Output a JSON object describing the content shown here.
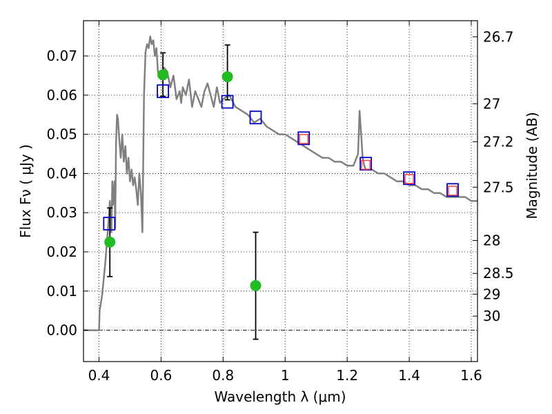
{
  "chart_data": {
    "type": "scatter",
    "xlabel": "Wavelength  λ (μm)",
    "ylabel": "Flux  Fν  ( μJy )",
    "y2label": "Magnitude (AB)",
    "xlim": [
      0.35,
      1.62
    ],
    "ylim": [
      -0.008,
      0.079
    ],
    "xticks": [
      0.4,
      0.6,
      0.8,
      1.0,
      1.2,
      1.4,
      1.6
    ],
    "xtick_labels": [
      "0.4",
      "0.6",
      "0.8",
      "1",
      "1.2",
      "1.4",
      "1.6"
    ],
    "yticks": [
      0.0,
      0.01,
      0.02,
      0.03,
      0.04,
      0.05,
      0.06,
      0.07
    ],
    "ytick_labels": [
      "0.00",
      "0.01",
      "0.02",
      "0.03",
      "0.04",
      "0.05",
      "0.06",
      "0.07"
    ],
    "y2ticks": [
      {
        "label": "26.7",
        "flux": 0.0749
      },
      {
        "label": "27",
        "flux": 0.0578
      },
      {
        "label": "27.2",
        "flux": 0.0481
      },
      {
        "label": "27.5",
        "flux": 0.0365
      },
      {
        "label": "28",
        "flux": 0.0229
      },
      {
        "label": "28.5",
        "flux": 0.0145
      },
      {
        "label": "29",
        "flux": 0.0092
      },
      {
        "label": "30",
        "flux": 0.0036
      }
    ],
    "grid": true,
    "sed_model": {
      "color": "#808080",
      "x": [
        0.35,
        0.4,
        0.402,
        0.41,
        0.42,
        0.43,
        0.435,
        0.44,
        0.443,
        0.445,
        0.45,
        0.452,
        0.455,
        0.458,
        0.461,
        0.465,
        0.47,
        0.475,
        0.48,
        0.485,
        0.49,
        0.495,
        0.5,
        0.505,
        0.51,
        0.515,
        0.52,
        0.525,
        0.53,
        0.535,
        0.54,
        0.545,
        0.55,
        0.555,
        0.56,
        0.565,
        0.57,
        0.575,
        0.58,
        0.585,
        0.59,
        0.6,
        0.61,
        0.62,
        0.63,
        0.64,
        0.65,
        0.66,
        0.665,
        0.67,
        0.68,
        0.69,
        0.7,
        0.71,
        0.72,
        0.73,
        0.74,
        0.75,
        0.76,
        0.77,
        0.78,
        0.79,
        0.8,
        0.82,
        0.84,
        0.86,
        0.88,
        0.9,
        0.92,
        0.94,
        0.96,
        0.98,
        1.0,
        1.02,
        1.04,
        1.06,
        1.08,
        1.1,
        1.12,
        1.14,
        1.16,
        1.18,
        1.2,
        1.22,
        1.235,
        1.24,
        1.245,
        1.25,
        1.255,
        1.26,
        1.28,
        1.3,
        1.32,
        1.34,
        1.36,
        1.38,
        1.4,
        1.42,
        1.44,
        1.46,
        1.48,
        1.5,
        1.52,
        1.54,
        1.56,
        1.58,
        1.6,
        1.62
      ],
      "y": [
        0.0,
        0.0,
        0.005,
        0.009,
        0.017,
        0.027,
        0.033,
        0.025,
        0.038,
        0.032,
        0.038,
        0.026,
        0.048,
        0.055,
        0.054,
        0.049,
        0.044,
        0.05,
        0.043,
        0.047,
        0.04,
        0.044,
        0.038,
        0.041,
        0.037,
        0.039,
        0.036,
        0.032,
        0.04,
        0.035,
        0.025,
        0.06,
        0.071,
        0.073,
        0.072,
        0.075,
        0.073,
        0.074,
        0.07,
        0.072,
        0.066,
        0.064,
        0.067,
        0.066,
        0.062,
        0.065,
        0.059,
        0.061,
        0.058,
        0.062,
        0.06,
        0.064,
        0.057,
        0.061,
        0.059,
        0.057,
        0.061,
        0.063,
        0.06,
        0.057,
        0.062,
        0.058,
        0.059,
        0.06,
        0.057,
        0.056,
        0.055,
        0.053,
        0.054,
        0.052,
        0.051,
        0.05,
        0.05,
        0.049,
        0.048,
        0.047,
        0.046,
        0.045,
        0.044,
        0.044,
        0.043,
        0.043,
        0.042,
        0.042,
        0.045,
        0.056,
        0.05,
        0.044,
        0.042,
        0.041,
        0.041,
        0.04,
        0.04,
        0.039,
        0.038,
        0.038,
        0.037,
        0.037,
        0.036,
        0.036,
        0.035,
        0.035,
        0.034,
        0.034,
        0.034,
        0.034,
        0.033,
        0.033
      ]
    },
    "model_photometry": {
      "color": "#0000cc",
      "x": [
        0.433,
        0.606,
        0.814,
        0.905,
        1.06,
        1.26,
        1.4,
        1.54
      ],
      "y": [
        0.0272,
        0.061,
        0.0583,
        0.0543,
        0.049,
        0.0425,
        0.0388,
        0.0358
      ]
    },
    "model_photometry_inner": {
      "color": "#ff4040",
      "x": [
        1.06,
        1.26,
        1.4,
        1.54
      ],
      "y": [
        0.0488,
        0.0422,
        0.0386,
        0.0356
      ]
    },
    "observed": {
      "color": "#22bb22",
      "x": [
        0.435,
        0.606,
        0.814,
        0.905
      ],
      "y": [
        0.0225,
        0.0652,
        0.0647,
        0.0114
      ],
      "err_low": [
        0.0137,
        0.0597,
        0.0588,
        -0.0023
      ],
      "err_high": [
        0.0312,
        0.0708,
        0.0728,
        0.025
      ]
    }
  }
}
